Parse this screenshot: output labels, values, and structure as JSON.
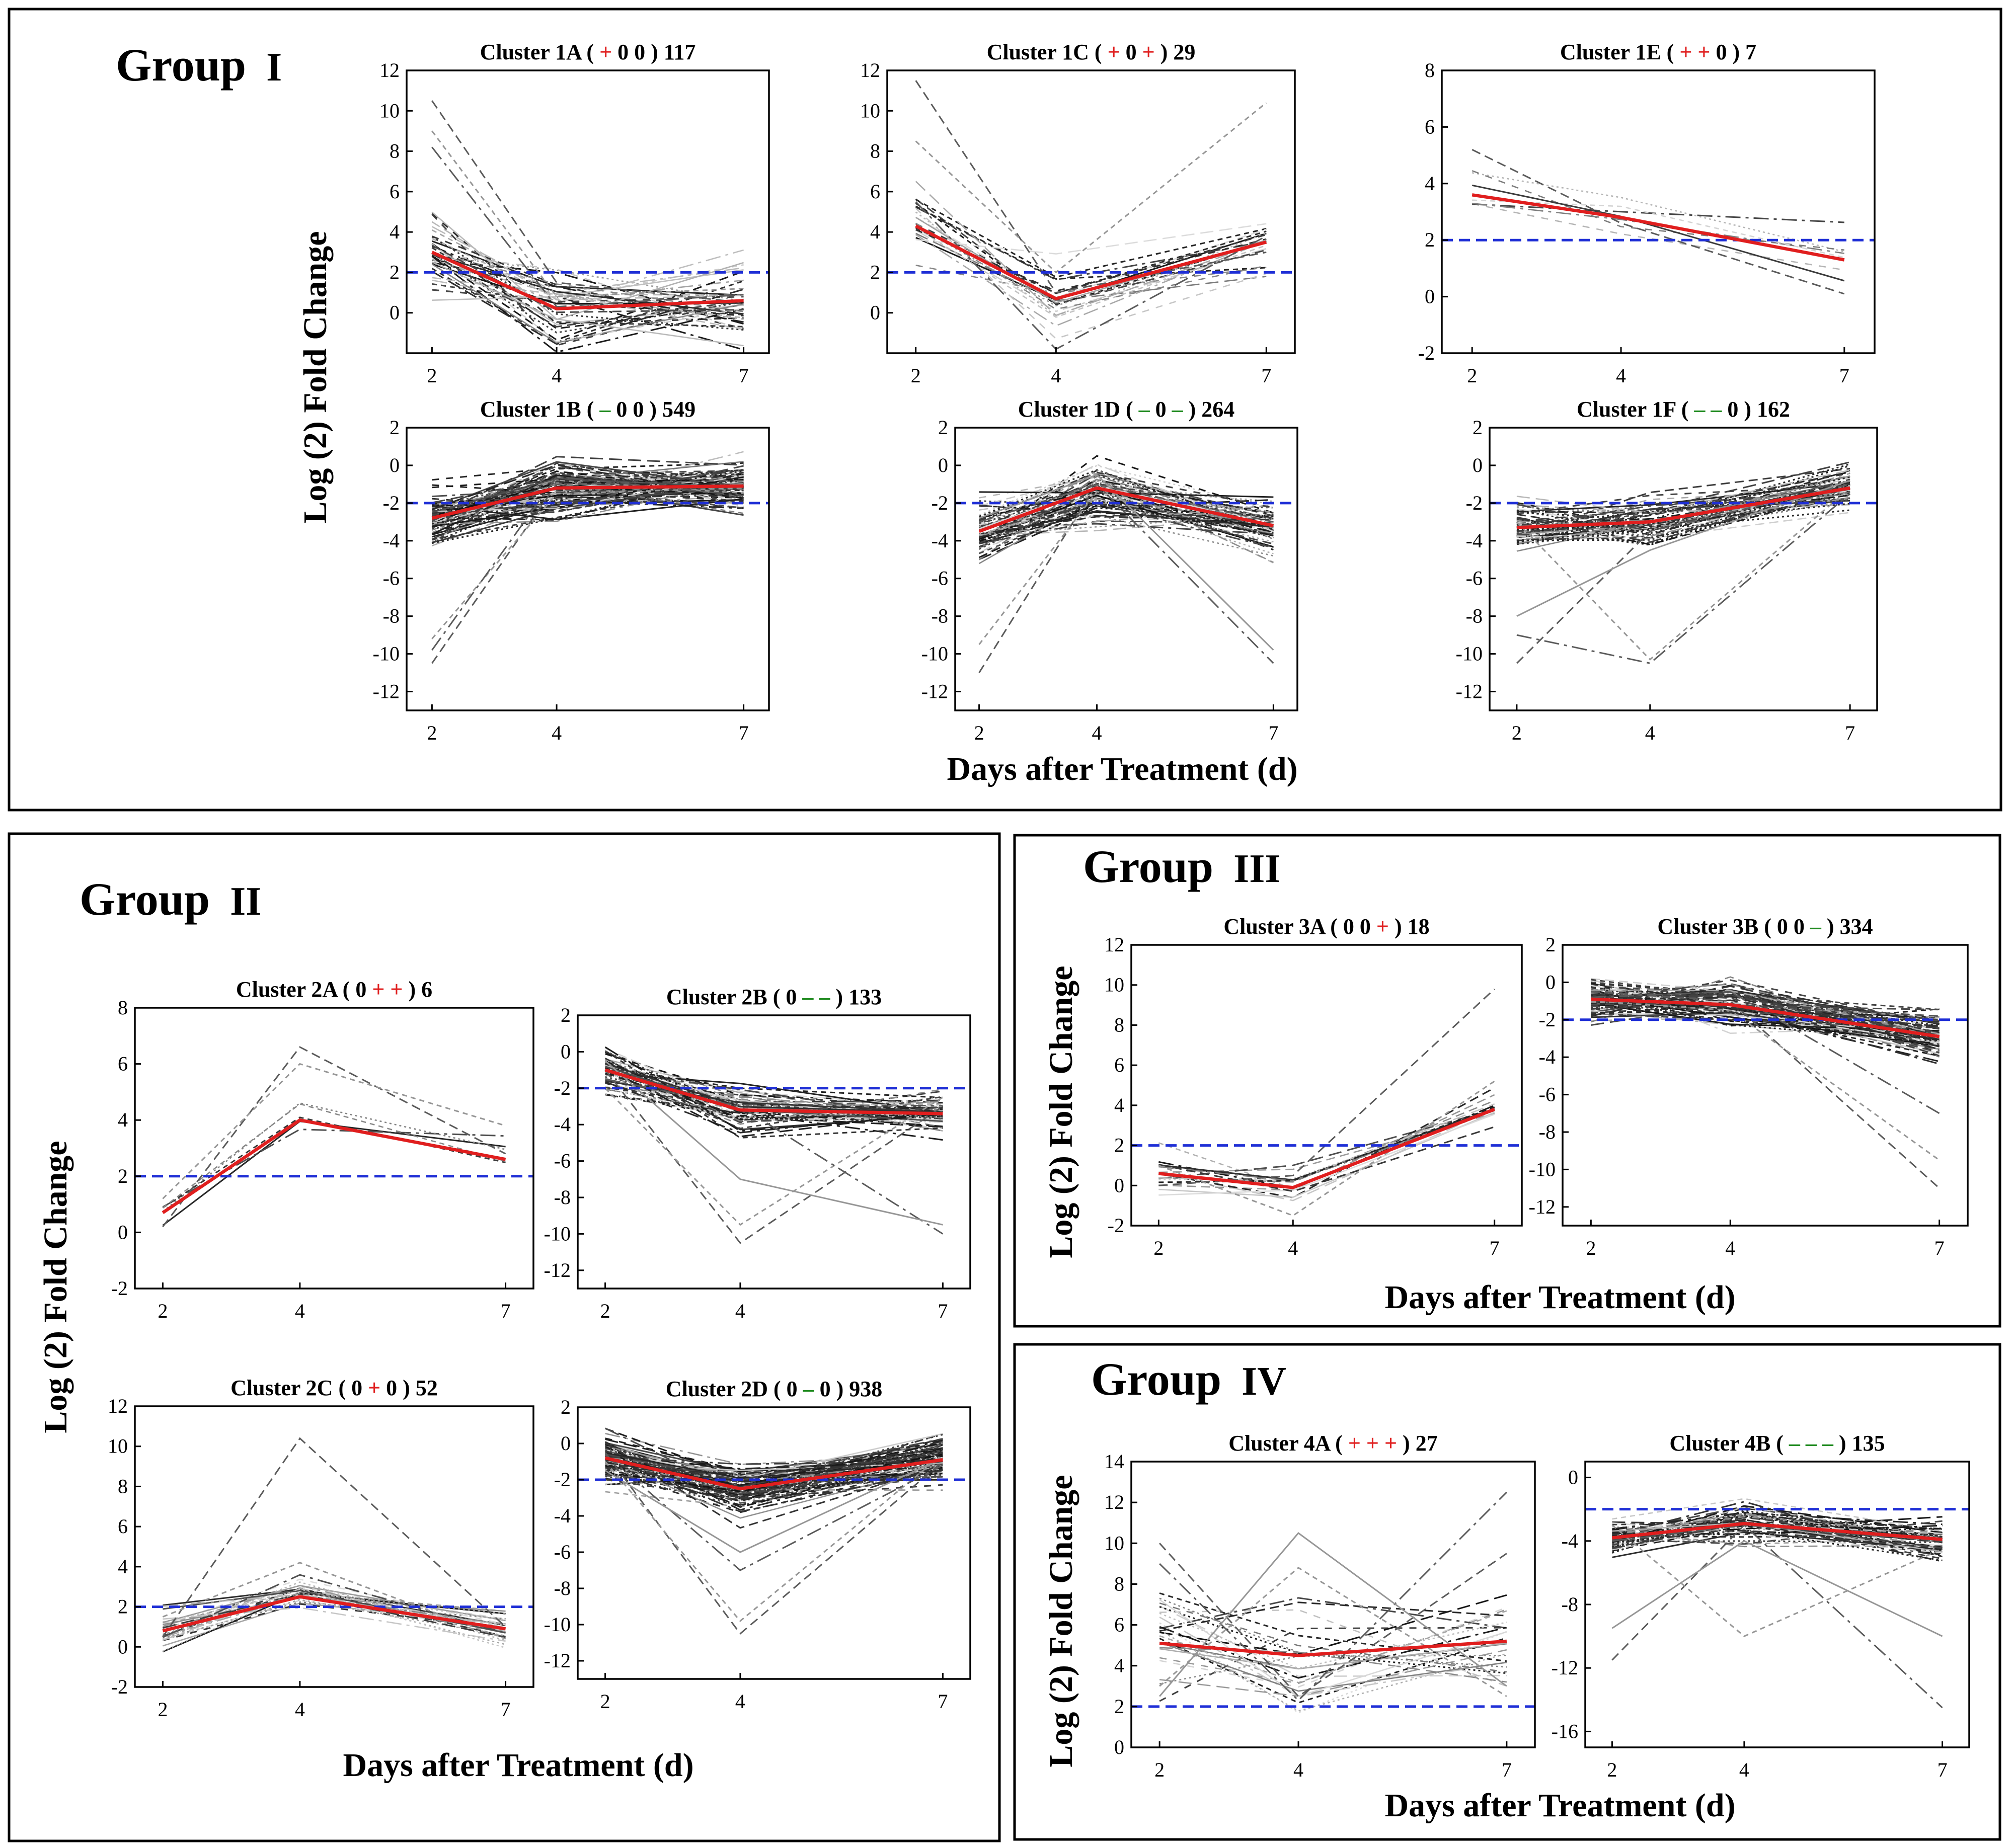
{
  "colors": {
    "mean_line": "#e01e1e",
    "threshold_line": "#1f2fd6",
    "profile_dark": "#222222",
    "profile_light": "#9a9a9a",
    "plus_symbol": "#e02020",
    "minus_symbol": "#1f8a1f",
    "frame": "#000000"
  },
  "axis_titles": {
    "y": "Log (2) Fold Change",
    "x": "Days after Treatment (d)"
  },
  "groups": [
    {
      "id": "g1",
      "label": "Group",
      "numeral": "I"
    },
    {
      "id": "g2",
      "label": "Group",
      "numeral": "II"
    },
    {
      "id": "g3",
      "label": "Group",
      "numeral": "III"
    },
    {
      "id": "g4",
      "label": "Group",
      "numeral": "IV"
    }
  ],
  "chart_data": [
    {
      "id": "1A",
      "type": "line",
      "title_prefix": "Cluster 1A",
      "pattern": [
        "+",
        "0",
        "0"
      ],
      "count": "117",
      "x": [
        2,
        4,
        7
      ],
      "x_ticks": [
        "2",
        "4",
        "7"
      ],
      "y_ticks": [
        0,
        2,
        4,
        6,
        8,
        10,
        12
      ],
      "ylim": [
        -2,
        12
      ],
      "threshold": 2,
      "mean": [
        3.0,
        0.2,
        0.6
      ],
      "n_traces": 40,
      "spread": 1.6,
      "density": "heavy",
      "outliers": [
        [
          10.5,
          1.5,
          0.5
        ],
        [
          9.0,
          0.8,
          1.2
        ],
        [
          8.2,
          0.3,
          0.9
        ]
      ],
      "series": [
        {
          "name": "cluster mean",
          "values": [
            3.0,
            0.2,
            0.6
          ]
        },
        {
          "name": "threshold",
          "values": [
            2,
            2,
            2
          ]
        }
      ]
    },
    {
      "id": "1C",
      "type": "line",
      "title_prefix": "Cluster 1C",
      "pattern": [
        "+",
        "0",
        "+"
      ],
      "count": "29",
      "x": [
        2,
        4,
        7
      ],
      "x_ticks": [
        "2",
        "4",
        "7"
      ],
      "y_ticks": [
        0,
        2,
        4,
        6,
        8,
        10,
        12
      ],
      "ylim": [
        -2,
        12
      ],
      "threshold": 2,
      "mean": [
        4.3,
        0.7,
        3.5
      ],
      "n_traces": 22,
      "spread": 1.3,
      "density": "medium",
      "outliers": [
        [
          11.5,
          1.0,
          3.0
        ],
        [
          8.5,
          2.0,
          10.4
        ],
        [
          5.5,
          -1.8,
          3.8
        ]
      ],
      "series": [
        {
          "name": "cluster mean",
          "values": [
            4.3,
            0.7,
            3.5
          ]
        },
        {
          "name": "threshold",
          "values": [
            2,
            2,
            2
          ]
        }
      ]
    },
    {
      "id": "1E",
      "type": "line",
      "title_prefix": "Cluster 1E",
      "pattern": [
        "+",
        "+",
        "0"
      ],
      "count": "7",
      "x": [
        2,
        4,
        7
      ],
      "x_ticks": [
        "2",
        "4",
        "7"
      ],
      "y_ticks": [
        -2,
        0,
        2,
        4,
        6,
        8
      ],
      "ylim": [
        -2,
        8
      ],
      "threshold": 2,
      "mean": [
        3.6,
        2.8,
        1.3
      ],
      "n_traces": 7,
      "spread": 0.8,
      "density": "light",
      "outliers": [
        [
          5.2,
          2.6,
          0.1
        ]
      ],
      "series": [
        {
          "name": "cluster mean",
          "values": [
            3.6,
            2.8,
            1.3
          ]
        },
        {
          "name": "threshold",
          "values": [
            2,
            2,
            2
          ]
        }
      ]
    },
    {
      "id": "1B",
      "type": "line",
      "title_prefix": "Cluster 1B",
      "pattern": [
        "-",
        "0",
        "0"
      ],
      "count": "549",
      "x": [
        2,
        4,
        7
      ],
      "x_ticks": [
        "2",
        "4",
        "7"
      ],
      "y_ticks": [
        -12,
        -10,
        -8,
        -6,
        -4,
        -2,
        0,
        2
      ],
      "ylim": [
        -13,
        2
      ],
      "threshold": -2,
      "mean": [
        -2.8,
        -1.2,
        -1.1
      ],
      "n_traces": 90,
      "spread": 1.2,
      "density": "very-heavy",
      "outliers": [
        [
          -10.5,
          -1.0,
          -0.8
        ],
        [
          -9.2,
          -1.5,
          -1.2
        ],
        [
          -9.8,
          -0.6,
          -1.6
        ]
      ],
      "series": [
        {
          "name": "cluster mean",
          "values": [
            -2.8,
            -1.2,
            -1.1
          ]
        },
        {
          "name": "threshold",
          "values": [
            -2,
            -2,
            -2
          ]
        }
      ]
    },
    {
      "id": "1D",
      "type": "line",
      "title_prefix": "Cluster 1D",
      "pattern": [
        "-",
        "0",
        "-"
      ],
      "count": "264",
      "x": [
        2,
        4,
        7
      ],
      "x_ticks": [
        "2",
        "4",
        "7"
      ],
      "y_ticks": [
        -12,
        -10,
        -8,
        -6,
        -4,
        -2,
        0,
        2
      ],
      "ylim": [
        -13,
        2
      ],
      "threshold": -2,
      "mean": [
        -3.5,
        -1.2,
        -3.2
      ],
      "n_traces": 70,
      "spread": 1.3,
      "density": "heavy",
      "outliers": [
        [
          -11.0,
          -1.0,
          -3.0
        ],
        [
          -9.5,
          -1.4,
          -2.5
        ],
        [
          -3.0,
          -1.0,
          -10.5
        ],
        [
          -2.8,
          -0.5,
          -9.8
        ]
      ],
      "series": [
        {
          "name": "cluster mean",
          "values": [
            -3.5,
            -1.2,
            -3.2
          ]
        },
        {
          "name": "threshold",
          "values": [
            -2,
            -2,
            -2
          ]
        }
      ]
    },
    {
      "id": "1F",
      "type": "line",
      "title_prefix": "Cluster 1F",
      "pattern": [
        "-",
        "-",
        "0"
      ],
      "count": "162",
      "x": [
        2,
        4,
        7
      ],
      "x_ticks": [
        "2",
        "4",
        "7"
      ],
      "y_ticks": [
        -12,
        -10,
        -8,
        -6,
        -4,
        -2,
        0,
        2
      ],
      "ylim": [
        -13,
        2
      ],
      "threshold": -2,
      "mean": [
        -3.3,
        -3.0,
        -1.2
      ],
      "n_traces": 60,
      "spread": 1.1,
      "density": "heavy",
      "outliers": [
        [
          -10.5,
          -3.5,
          -1.0
        ],
        [
          -3.0,
          -10.3,
          -1.2
        ],
        [
          -9.0,
          -10.5,
          -1.5
        ],
        [
          -8.0,
          -4.5,
          -0.8
        ]
      ],
      "series": [
        {
          "name": "cluster mean",
          "values": [
            -3.3,
            -3.0,
            -1.2
          ]
        },
        {
          "name": "threshold",
          "values": [
            -2,
            -2,
            -2
          ]
        }
      ]
    },
    {
      "id": "2A",
      "type": "line",
      "title_prefix": "Cluster 2A",
      "pattern": [
        "0",
        "+",
        "+"
      ],
      "count": "6",
      "x": [
        2,
        4,
        7
      ],
      "x_ticks": [
        "2",
        "4",
        "7"
      ],
      "y_ticks": [
        -2,
        0,
        2,
        4,
        6,
        8
      ],
      "ylim": [
        -2,
        8
      ],
      "threshold": 2,
      "mean": [
        0.7,
        4.0,
        2.6
      ],
      "n_traces": 5,
      "spread": 0.6,
      "density": "light",
      "outliers": [
        [
          0.2,
          6.6,
          2.8
        ],
        [
          1.2,
          6.0,
          3.8
        ]
      ],
      "series": [
        {
          "name": "cluster mean",
          "values": [
            0.7,
            4.0,
            2.6
          ]
        },
        {
          "name": "threshold",
          "values": [
            2,
            2,
            2
          ]
        }
      ]
    },
    {
      "id": "2B",
      "type": "line",
      "title_prefix": "Cluster 2B",
      "pattern": [
        "0",
        "-",
        "-"
      ],
      "count": "133",
      "x": [
        2,
        4,
        7
      ],
      "x_ticks": [
        "2",
        "4",
        "7"
      ],
      "y_ticks": [
        -12,
        -10,
        -8,
        -6,
        -4,
        -2,
        0,
        2
      ],
      "ylim": [
        -13,
        2
      ],
      "threshold": -2,
      "mean": [
        -1.0,
        -3.2,
        -3.4
      ],
      "n_traces": 60,
      "spread": 1.1,
      "density": "heavy",
      "outliers": [
        [
          -1.0,
          -10.5,
          -3.0
        ],
        [
          -2.0,
          -9.5,
          -2.5
        ],
        [
          -1.5,
          -3.0,
          -10.0
        ],
        [
          -0.5,
          -7.0,
          -9.5
        ]
      ],
      "series": [
        {
          "name": "cluster mean",
          "values": [
            -1.0,
            -3.2,
            -3.4
          ]
        },
        {
          "name": "threshold",
          "values": [
            -2,
            -2,
            -2
          ]
        }
      ]
    },
    {
      "id": "2C",
      "type": "line",
      "title_prefix": "Cluster 2C",
      "pattern": [
        "0",
        "+",
        "0"
      ],
      "count": "52",
      "x": [
        2,
        4,
        7
      ],
      "x_ticks": [
        "2",
        "4",
        "7"
      ],
      "y_ticks": [
        -2,
        0,
        2,
        4,
        6,
        8,
        10,
        12
      ],
      "ylim": [
        -2,
        12
      ],
      "threshold": 2,
      "mean": [
        0.8,
        2.5,
        0.9
      ],
      "n_traces": 30,
      "spread": 0.9,
      "density": "medium",
      "outliers": [
        [
          0.5,
          10.4,
          1.0
        ],
        [
          1.5,
          4.2,
          0.4
        ]
      ],
      "series": [
        {
          "name": "cluster mean",
          "values": [
            0.8,
            2.5,
            0.9
          ]
        },
        {
          "name": "threshold",
          "values": [
            2,
            2,
            2
          ]
        }
      ]
    },
    {
      "id": "2D",
      "type": "line",
      "title_prefix": "Cluster 2D",
      "pattern": [
        "0",
        "-",
        "0"
      ],
      "count": "938",
      "x": [
        2,
        4,
        7
      ],
      "x_ticks": [
        "2",
        "4",
        "7"
      ],
      "y_ticks": [
        -12,
        -10,
        -8,
        -6,
        -4,
        -2,
        0,
        2
      ],
      "ylim": [
        -13,
        2
      ],
      "threshold": -2,
      "mean": [
        -0.8,
        -2.5,
        -0.9
      ],
      "n_traces": 95,
      "spread": 1.1,
      "density": "very-heavy",
      "outliers": [
        [
          -0.5,
          -10.5,
          -1.0
        ],
        [
          -1.0,
          -9.8,
          -0.6
        ],
        [
          -0.6,
          -7.0,
          -1.2
        ],
        [
          -1.5,
          -6.0,
          -0.8
        ]
      ],
      "series": [
        {
          "name": "cluster mean",
          "values": [
            -0.8,
            -2.5,
            -0.9
          ]
        },
        {
          "name": "threshold",
          "values": [
            -2,
            -2,
            -2
          ]
        }
      ]
    },
    {
      "id": "3A",
      "type": "line",
      "title_prefix": "Cluster 3A",
      "pattern": [
        "0",
        "0",
        "+"
      ],
      "count": "18",
      "x": [
        2,
        4,
        7
      ],
      "x_ticks": [
        "2",
        "4",
        "7"
      ],
      "y_ticks": [
        -2,
        0,
        2,
        4,
        6,
        8,
        10,
        12
      ],
      "ylim": [
        -2,
        12
      ],
      "threshold": 2,
      "mean": [
        0.6,
        -0.1,
        3.8
      ],
      "n_traces": 16,
      "spread": 0.9,
      "density": "medium",
      "outliers": [
        [
          0.0,
          0.5,
          9.8
        ],
        [
          1.0,
          -1.5,
          5.2
        ]
      ],
      "series": [
        {
          "name": "cluster mean",
          "values": [
            0.6,
            -0.1,
            3.8
          ]
        },
        {
          "name": "threshold",
          "values": [
            2,
            2,
            2
          ]
        }
      ]
    },
    {
      "id": "3B",
      "type": "line",
      "title_prefix": "Cluster 3B",
      "pattern": [
        "0",
        "0",
        "-"
      ],
      "count": "334",
      "x": [
        2,
        4,
        7
      ],
      "x_ticks": [
        "2",
        "4",
        "7"
      ],
      "y_ticks": [
        -12,
        -10,
        -8,
        -6,
        -4,
        -2,
        0,
        2
      ],
      "ylim": [
        -13,
        2
      ],
      "threshold": -2,
      "mean": [
        -0.9,
        -1.2,
        -2.9
      ],
      "n_traces": 80,
      "spread": 1.0,
      "density": "very-heavy",
      "outliers": [
        [
          -0.5,
          -1.0,
          -11.0
        ],
        [
          -1.0,
          -1.5,
          -9.5
        ],
        [
          -0.8,
          -0.5,
          -7.0
        ]
      ],
      "series": [
        {
          "name": "cluster mean",
          "values": [
            -0.9,
            -1.2,
            -2.9
          ]
        },
        {
          "name": "threshold",
          "values": [
            -2,
            -2,
            -2
          ]
        }
      ]
    },
    {
      "id": "4A",
      "type": "line",
      "title_prefix": "Cluster 4A",
      "pattern": [
        "+",
        "+",
        "+"
      ],
      "count": "27",
      "x": [
        2,
        4,
        7
      ],
      "x_ticks": [
        "2",
        "4",
        "7"
      ],
      "y_ticks": [
        0,
        2,
        4,
        6,
        8,
        10,
        12,
        14
      ],
      "ylim": [
        0,
        14
      ],
      "threshold": 2,
      "mean": [
        5.1,
        4.5,
        5.2
      ],
      "n_traces": 26,
      "spread": 2.4,
      "density": "medium",
      "outliers": [
        [
          10.0,
          2.5,
          9.5
        ],
        [
          3.0,
          8.8,
          2.5
        ],
        [
          9.0,
          2.3,
          12.5
        ],
        [
          2.5,
          10.5,
          3.0
        ]
      ],
      "series": [
        {
          "name": "cluster mean",
          "values": [
            5.1,
            4.5,
            5.2
          ]
        },
        {
          "name": "threshold",
          "values": [
            2,
            2,
            2
          ]
        }
      ]
    },
    {
      "id": "4B",
      "type": "line",
      "title_prefix": "Cluster 4B",
      "pattern": [
        "-",
        "-",
        "-"
      ],
      "count": "135",
      "x": [
        2,
        4,
        7
      ],
      "x_ticks": [
        "2",
        "4",
        "7"
      ],
      "y_ticks": [
        -16,
        -12,
        -8,
        -4,
        0
      ],
      "ylim": [
        -17,
        1
      ],
      "threshold": -2,
      "mean": [
        -3.8,
        -2.9,
        -3.9
      ],
      "n_traces": 60,
      "spread": 1.0,
      "density": "heavy",
      "outliers": [
        [
          -11.5,
          -3.0,
          -4.0
        ],
        [
          -3.0,
          -10.0,
          -4.5
        ],
        [
          -4.0,
          -3.0,
          -14.5
        ],
        [
          -9.5,
          -4.0,
          -10.0
        ]
      ],
      "series": [
        {
          "name": "cluster mean",
          "values": [
            -3.8,
            -2.9,
            -3.9
          ]
        },
        {
          "name": "threshold",
          "values": [
            -2,
            -2,
            -2
          ]
        }
      ]
    }
  ]
}
